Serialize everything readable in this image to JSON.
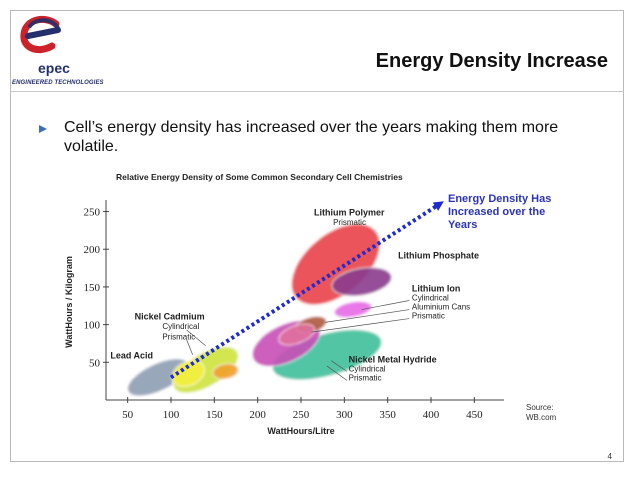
{
  "logo": {
    "word": "epec",
    "tagline": "ENGINEERED TECHNOLOGIES",
    "colors": {
      "red": "#cc2229",
      "blue": "#24306e"
    }
  },
  "slide": {
    "title": "Energy Density Increase",
    "bullet": "Cell’s energy density has increased over the years making them more volatile.",
    "page_number": "4"
  },
  "chart_data": {
    "type": "scatter",
    "title": "Relative Energy Density of Some Common Secondary Cell Chemistries",
    "xlabel": "WattHours/Litre",
    "ylabel": "WattHours / Kilogram",
    "xlim": [
      25,
      475
    ],
    "ylim": [
      0,
      260
    ],
    "x_ticks": [
      50,
      100,
      150,
      200,
      250,
      300,
      350,
      400,
      450
    ],
    "y_ticks": [
      50,
      100,
      150,
      200,
      250
    ],
    "grid": false,
    "source": "Source:\nWB.com",
    "arrow_label": [
      "Energy Density Has",
      "Increased over the",
      "Years"
    ],
    "arrow": {
      "from": [
        100,
        30
      ],
      "to": [
        410,
        260
      ]
    },
    "regions": [
      {
        "name": "Lead Acid",
        "cx": 85,
        "cy": 30,
        "rx": 38,
        "ry": 18,
        "angle": -25,
        "color": "#8f9eb4"
      },
      {
        "name": "Nickel Cadmium Cylindrical",
        "cx": 140,
        "cy": 40,
        "rx": 42,
        "ry": 22,
        "angle": -30,
        "color": "#cfe33e"
      },
      {
        "name": "Nickel Cadmium Prismatic",
        "cx": 120,
        "cy": 35,
        "rx": 20,
        "ry": 16,
        "angle": -25,
        "color": "#f4ef3c"
      },
      {
        "name": "Small orange region",
        "cx": 163,
        "cy": 38,
        "rx": 15,
        "ry": 10,
        "angle": -10,
        "color": "#f1a12b"
      },
      {
        "name": "Nickel Metal Hydride",
        "cx": 280,
        "cy": 60,
        "rx": 65,
        "ry": 28,
        "angle": -15,
        "color": "#3fbf9b"
      },
      {
        "name": "Large magenta region",
        "cx": 233,
        "cy": 75,
        "rx": 42,
        "ry": 25,
        "angle": -25,
        "color": "#c84fb6"
      },
      {
        "name": "Lithium Polymer",
        "cx": 290,
        "cy": 180,
        "rx": 60,
        "ry": 40,
        "angle": -40,
        "color": "#e8424a"
      },
      {
        "name": "Lithium Phosphate",
        "cx": 320,
        "cy": 157,
        "rx": 35,
        "ry": 18,
        "angle": -10,
        "color": "#8b3a8f"
      },
      {
        "name": "Lithium Ion Cylindrical",
        "cx": 310,
        "cy": 120,
        "rx": 22,
        "ry": 10,
        "angle": -10,
        "color": "#e76be7"
      },
      {
        "name": "Lithium Ion Aluminium Cans",
        "cx": 262,
        "cy": 100,
        "rx": 18,
        "ry": 10,
        "angle": -15,
        "color": "#b05a3c"
      },
      {
        "name": "Lithium Ion Prismatic",
        "cx": 245,
        "cy": 87,
        "rx": 22,
        "ry": 12,
        "angle": -20,
        "color": "#e06fa0"
      }
    ],
    "labels": [
      {
        "text": "Lithium Polymer",
        "bold": true,
        "x": 265,
        "y": 245
      },
      {
        "text": "Prismatic",
        "bold": false,
        "x": 287,
        "y": 232
      },
      {
        "text": "Lithium Phosphate",
        "bold": true,
        "x": 362,
        "y": 188
      },
      {
        "text": "Lithium Ion",
        "bold": true,
        "x": 378,
        "y": 144
      },
      {
        "text": "Cylindrical",
        "bold": false,
        "x": 378,
        "y": 132
      },
      {
        "text": "Aluminium Cans",
        "bold": false,
        "x": 378,
        "y": 120
      },
      {
        "text": "Prismatic",
        "bold": false,
        "x": 378,
        "y": 108
      },
      {
        "text": "Nickel Cadmium",
        "bold": true,
        "x": 58,
        "y": 107
      },
      {
        "text": "Cylindrical",
        "bold": false,
        "x": 90,
        "y": 94
      },
      {
        "text": "Prismatic",
        "bold": false,
        "x": 90,
        "y": 80
      },
      {
        "text": "Lead Acid",
        "bold": true,
        "x": 30,
        "y": 55
      },
      {
        "text": "Nickel Metal Hydride",
        "bold": true,
        "x": 305,
        "y": 50
      },
      {
        "text": "Cylindrical",
        "bold": false,
        "x": 305,
        "y": 38
      },
      {
        "text": "Prismatic",
        "bold": false,
        "x": 305,
        "y": 26
      }
    ]
  }
}
